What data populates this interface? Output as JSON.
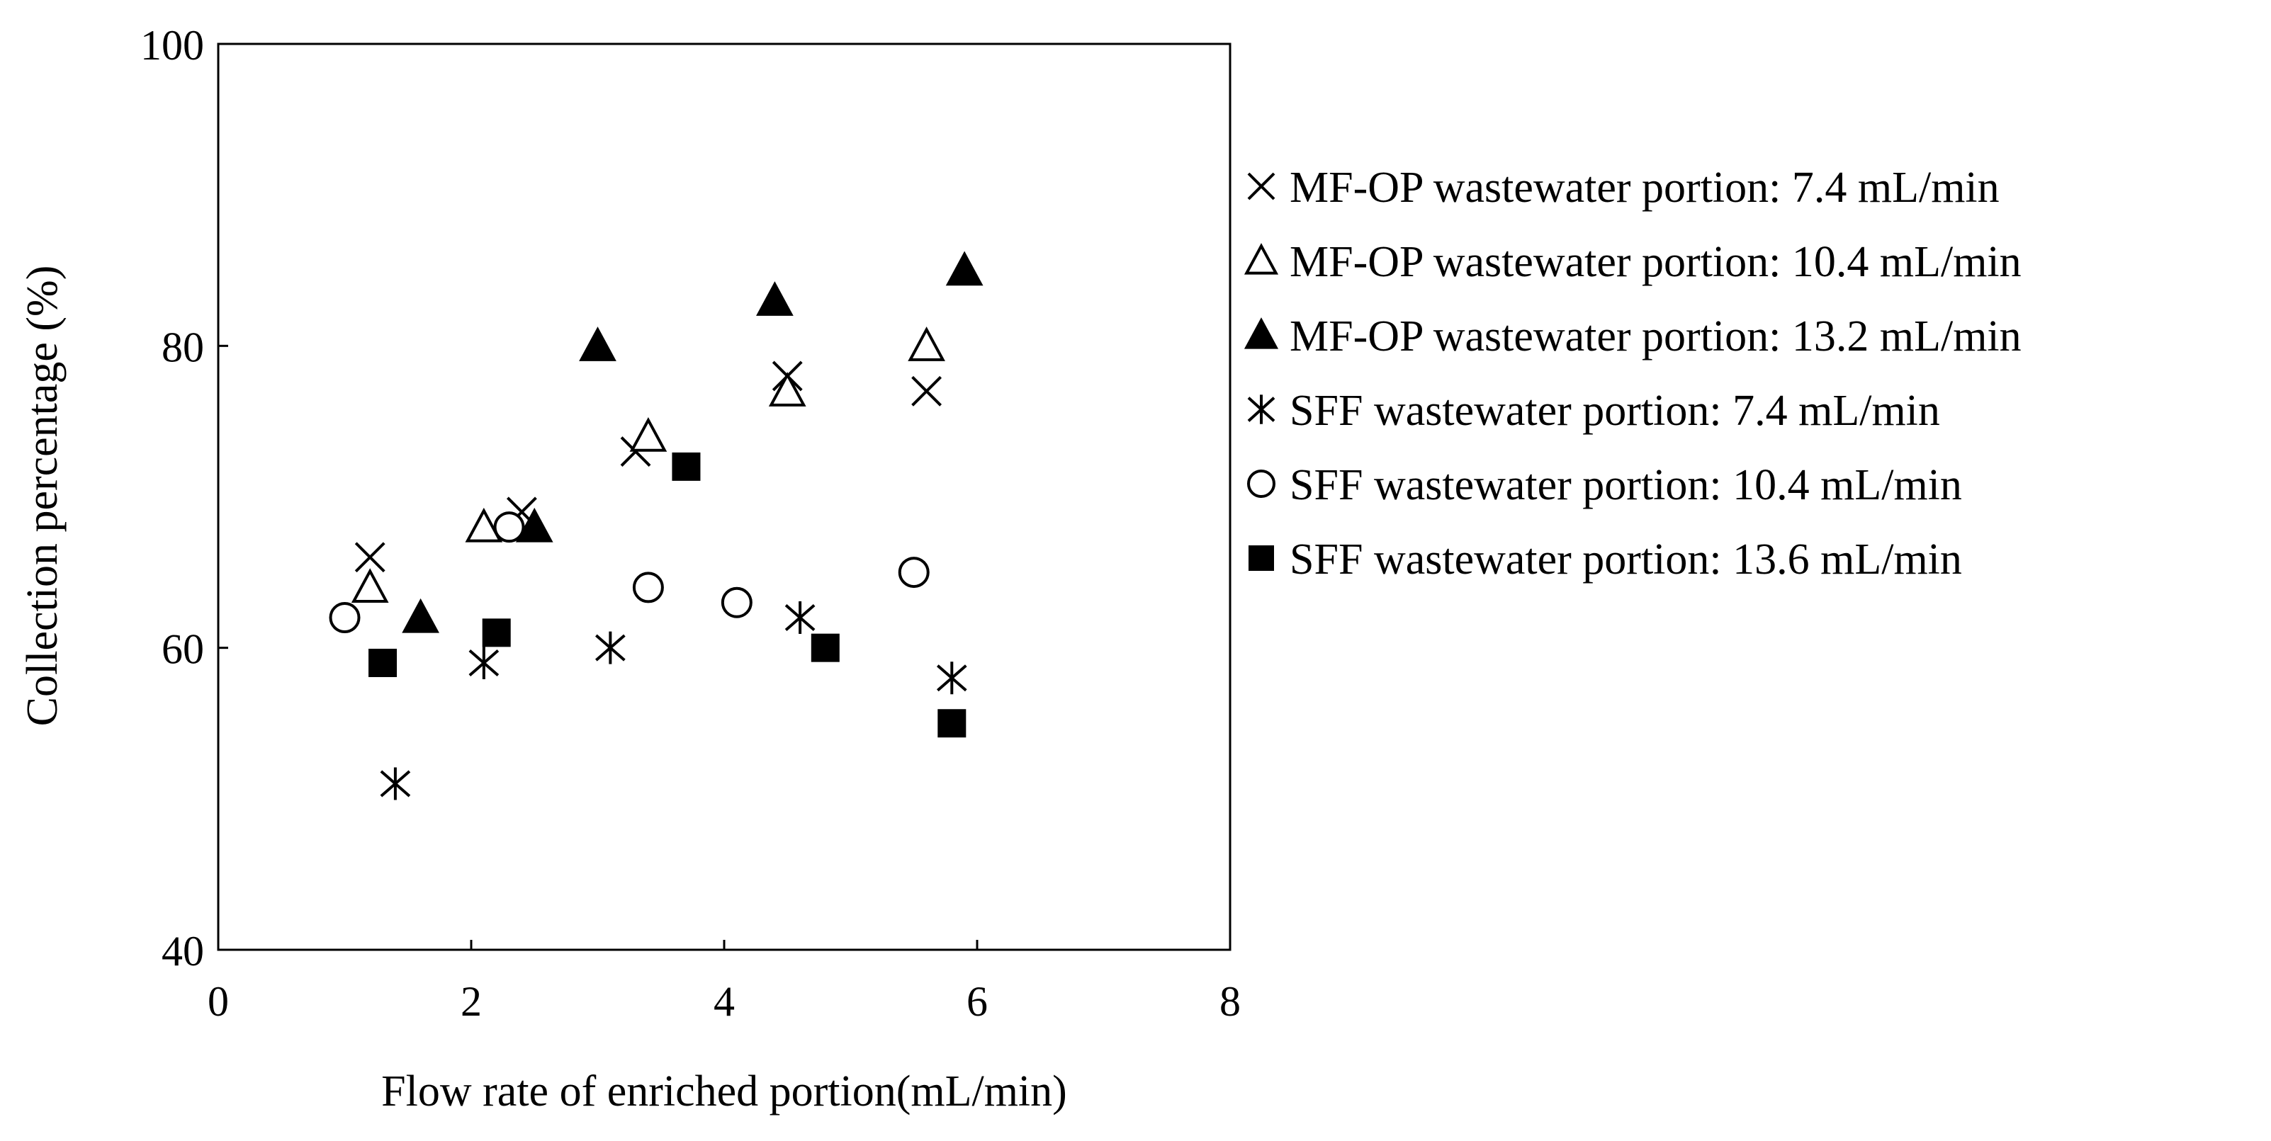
{
  "chart_data": {
    "type": "scatter",
    "title": "",
    "xlabel": "Flow rate of enriched portion(mL/min)",
    "ylabel": "Collection  percentage (%)",
    "xlim": [
      0,
      8
    ],
    "ylim": [
      40,
      100
    ],
    "x_ticks": [
      "0",
      "2",
      "4",
      "6",
      "8"
    ],
    "y_ticks": [
      "40",
      "60",
      "80",
      "100"
    ],
    "grid": false,
    "legend_position": "right",
    "series": [
      {
        "name": "MF-OP wastewater portion: 7.4 mL/min",
        "marker": "x",
        "points": [
          [
            1.2,
            66
          ],
          [
            2.4,
            69
          ],
          [
            3.3,
            73
          ],
          [
            4.5,
            78
          ],
          [
            5.6,
            77
          ]
        ]
      },
      {
        "name": "MF-OP wastewater portion: 10.4 mL/min",
        "marker": "open-triangle",
        "points": [
          [
            1.2,
            64
          ],
          [
            2.1,
            68
          ],
          [
            3.4,
            74
          ],
          [
            4.5,
            77
          ],
          [
            5.6,
            80
          ]
        ]
      },
      {
        "name": "MF-OP wastewater portion: 13.2 mL/min",
        "marker": "filled-triangle",
        "points": [
          [
            1.6,
            62
          ],
          [
            2.5,
            68
          ],
          [
            3.0,
            80
          ],
          [
            4.4,
            83
          ],
          [
            5.9,
            85
          ]
        ]
      },
      {
        "name": "SFF wastewater portion: 7.4 mL/min",
        "marker": "asterisk",
        "points": [
          [
            1.4,
            51
          ],
          [
            2.1,
            59
          ],
          [
            3.1,
            60
          ],
          [
            4.6,
            62
          ],
          [
            5.8,
            58
          ]
        ]
      },
      {
        "name": "SFF wastewater portion: 10.4 mL/min",
        "marker": "open-circle",
        "points": [
          [
            1.0,
            62
          ],
          [
            2.3,
            68
          ],
          [
            3.4,
            64
          ],
          [
            4.1,
            63
          ],
          [
            5.5,
            65
          ]
        ]
      },
      {
        "name": "SFF wastewater portion: 13.6 mL/min",
        "marker": "filled-square",
        "points": [
          [
            1.3,
            59
          ],
          [
            2.2,
            61
          ],
          [
            3.7,
            72
          ],
          [
            4.8,
            60
          ],
          [
            5.8,
            55
          ]
        ]
      }
    ]
  }
}
